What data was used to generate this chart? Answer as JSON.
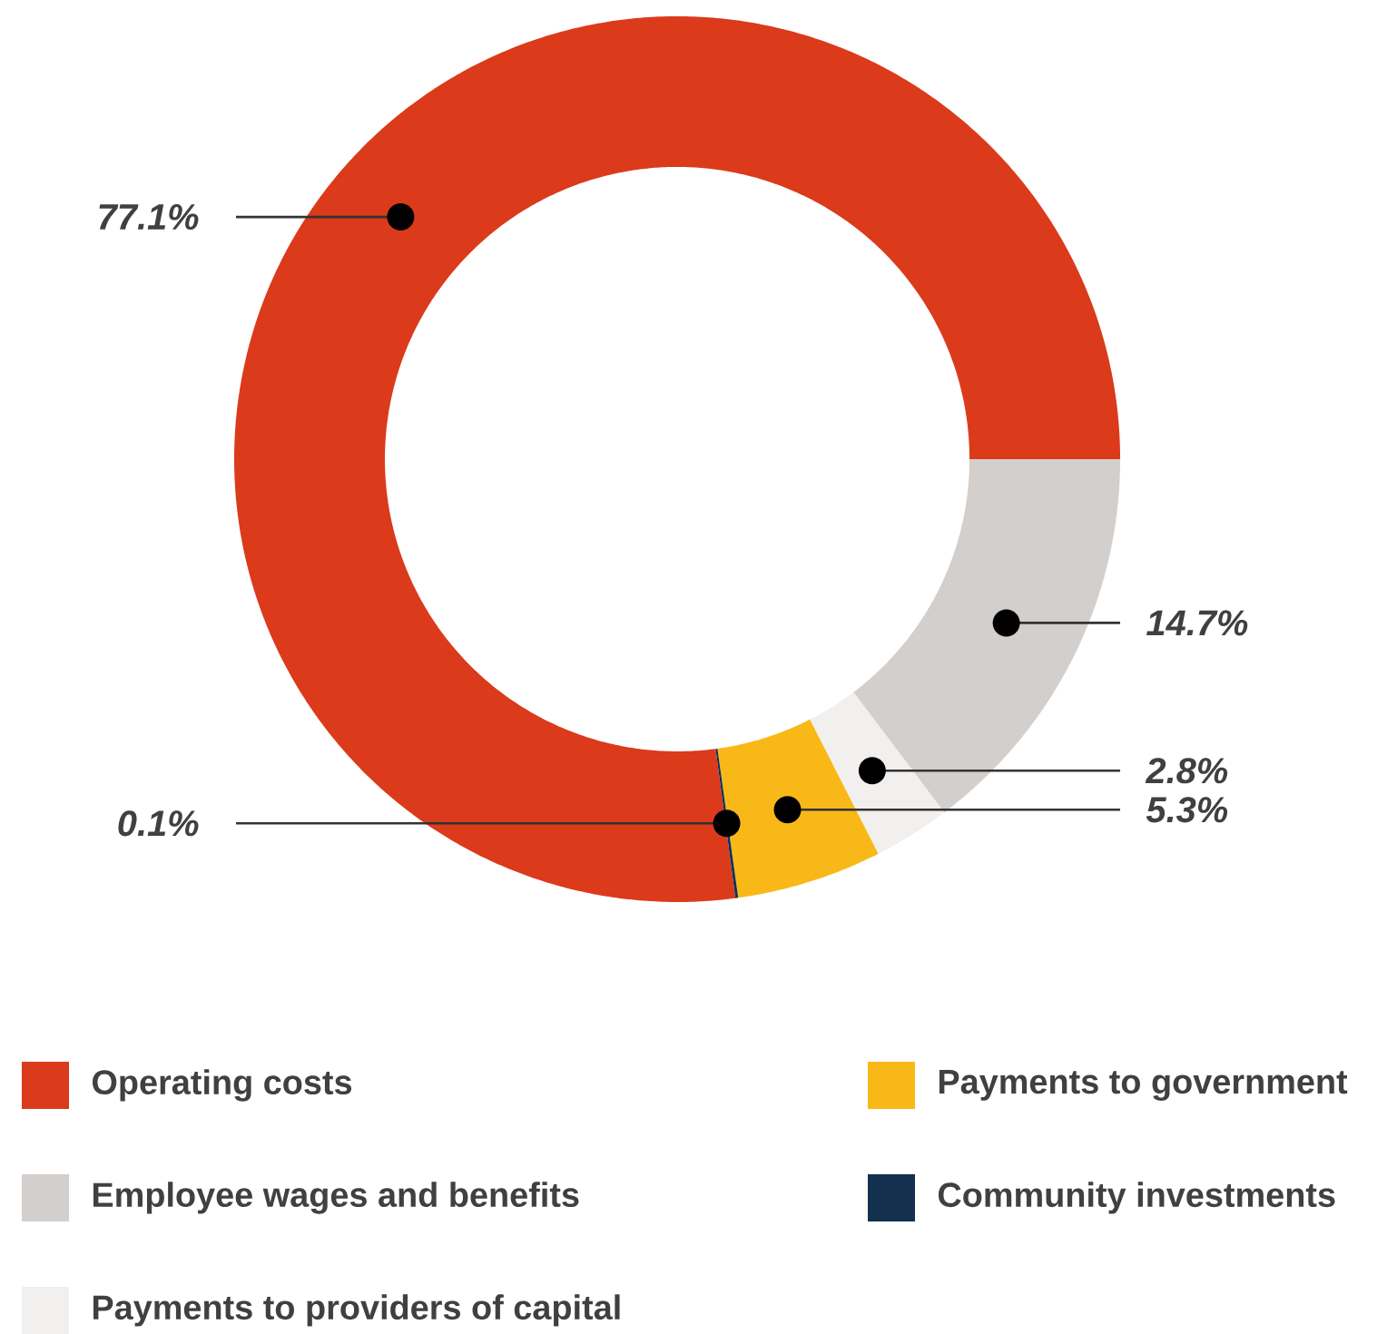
{
  "chart_data": {
    "type": "donut",
    "categories": [
      "Operating costs",
      "Employee wages and benefits",
      "Payments to providers of capital",
      "Payments to government",
      "Community investments"
    ],
    "values": [
      77.1,
      14.7,
      2.8,
      5.3,
      0.1
    ],
    "colors": [
      "#db3a1b",
      "#d3cfcd",
      "#f2f0ef",
      "#f8b918",
      "#14304f"
    ],
    "value_labels": [
      "77.1%",
      "14.7%",
      "2.8%",
      "5.3%",
      "0.1%"
    ],
    "legend": "bottom"
  }
}
